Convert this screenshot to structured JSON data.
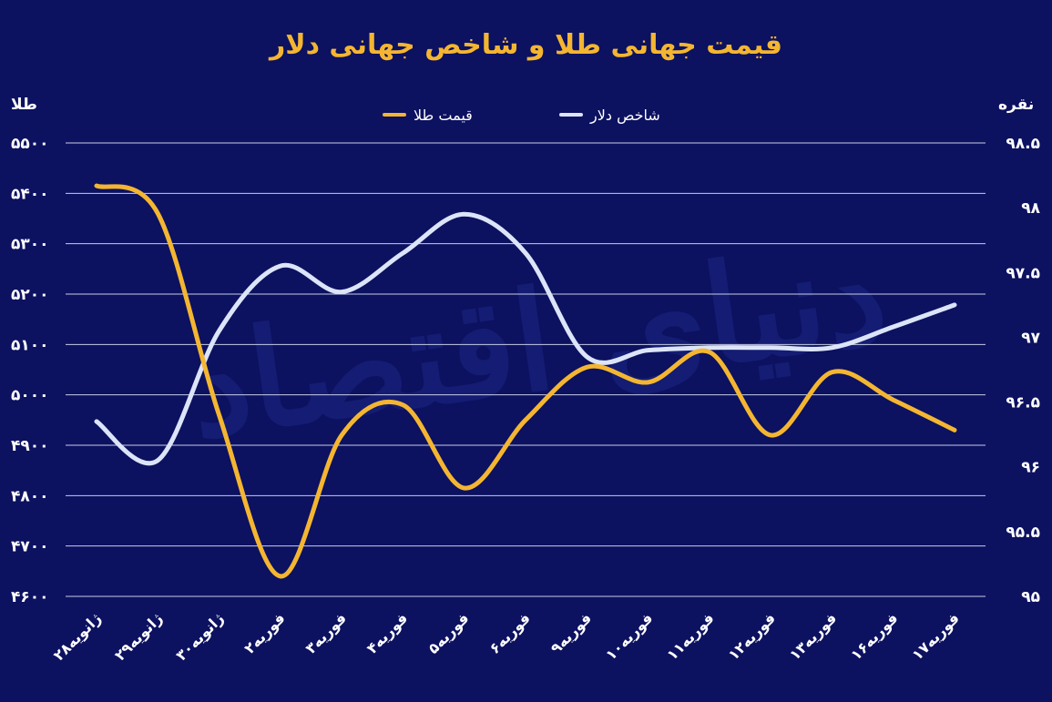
{
  "chart_data": {
    "type": "line",
    "title": "قیمت جهانی طلا و شاخص جهانی دلار",
    "left_axis_label": "طلا",
    "right_axis_label": "نقره",
    "watermark": "دنیای اقتصاد",
    "categories": [
      "۲۸ژانویه",
      "۲۹ژانویه",
      "۳۰ژانویه",
      "۲فوریه",
      "۳فوریه",
      "۴فوریه",
      "۵فوریه",
      "۶فوریه",
      "۹فوریه",
      "۱۰فوریه",
      "۱۱فوریه",
      "۱۲فوریه",
      "۱۳فوریه",
      "۱۶فوریه",
      "۱۷فوریه"
    ],
    "left_ticks": [
      {
        "value": 4600,
        "label": "۴۶۰۰"
      },
      {
        "value": 4700,
        "label": "۴۷۰۰"
      },
      {
        "value": 4800,
        "label": "۴۸۰۰"
      },
      {
        "value": 4900,
        "label": "۴۹۰۰"
      },
      {
        "value": 5000,
        "label": "۵۰۰۰"
      },
      {
        "value": 5100,
        "label": "۵۱۰۰"
      },
      {
        "value": 5200,
        "label": "۵۲۰۰"
      },
      {
        "value": 5300,
        "label": "۵۳۰۰"
      },
      {
        "value": 5400,
        "label": "۵۴۰۰"
      },
      {
        "value": 5500,
        "label": "۵۵۰۰"
      }
    ],
    "right_ticks": [
      {
        "value": 95,
        "label": "۹۵"
      },
      {
        "value": 95.5,
        "label": "۹۵.۵"
      },
      {
        "value": 96,
        "label": "۹۶"
      },
      {
        "value": 96.5,
        "label": "۹۶.۵"
      },
      {
        "value": 97,
        "label": "۹۷"
      },
      {
        "value": 97.5,
        "label": "۹۷.۵"
      },
      {
        "value": 98,
        "label": "۹۸"
      },
      {
        "value": 98.5,
        "label": "۹۸.۵"
      }
    ],
    "ylim_left": [
      4600,
      5500
    ],
    "ylim_right": [
      95,
      98.5
    ],
    "grid": true,
    "legend_position": "top-center",
    "series": [
      {
        "name": "قیمت طلا",
        "axis": "left",
        "color": "#f4b631",
        "values": [
          5415,
          5360,
          4960,
          4640,
          4920,
          4980,
          4815,
          4950,
          5055,
          5025,
          5085,
          4920,
          5045,
          4990,
          4930
        ]
      },
      {
        "name": "شاخص دلار",
        "axis": "right",
        "color": "#dce4f8",
        "values": [
          96.35,
          96.05,
          97.05,
          97.55,
          97.35,
          97.65,
          97.95,
          97.65,
          96.85,
          96.9,
          96.92,
          96.92,
          96.92,
          97.08,
          97.25
        ]
      }
    ]
  }
}
